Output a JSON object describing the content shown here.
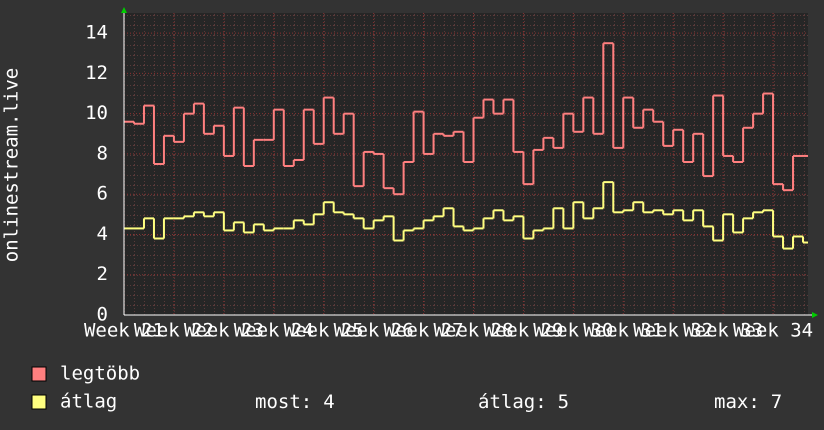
{
  "chart_data": {
    "type": "line",
    "y_label": "onlinestream.live",
    "x": [
      21.0,
      21.2,
      21.4,
      21.6,
      21.8,
      22.0,
      22.2,
      22.4,
      22.6,
      22.8,
      23.0,
      23.2,
      23.4,
      23.6,
      23.8,
      24.0,
      24.2,
      24.4,
      24.6,
      24.8,
      25.0,
      25.2,
      25.4,
      25.6,
      25.8,
      26.0,
      26.2,
      26.4,
      26.6,
      26.8,
      27.0,
      27.2,
      27.4,
      27.6,
      27.8,
      28.0,
      28.2,
      28.4,
      28.6,
      28.8,
      29.0,
      29.2,
      29.4,
      29.6,
      29.8,
      30.0,
      30.2,
      30.4,
      30.6,
      30.8,
      31.0,
      31.2,
      31.4,
      31.6,
      31.8,
      32.0,
      32.2,
      32.4,
      32.6,
      32.8,
      33.0,
      33.2,
      33.4,
      33.6,
      33.8,
      34.0,
      34.2,
      34.4,
      34.6
    ],
    "series": [
      {
        "name": "legtöbb",
        "color": "#ff7f7f",
        "values": [
          9.6,
          9.5,
          10.4,
          7.5,
          8.9,
          8.6,
          10.0,
          10.5,
          9.0,
          9.4,
          7.9,
          10.3,
          7.4,
          8.7,
          8.7,
          10.2,
          7.4,
          7.7,
          10.2,
          8.5,
          10.8,
          9.0,
          10.0,
          6.4,
          8.1,
          8.0,
          6.3,
          6.0,
          7.6,
          10.1,
          8.0,
          9.0,
          8.9,
          9.1,
          7.6,
          9.8,
          10.7,
          10.0,
          10.7,
          8.1,
          6.5,
          8.2,
          8.8,
          8.3,
          10.0,
          9.1,
          10.8,
          9.0,
          13.5,
          8.3,
          10.8,
          9.3,
          10.2,
          9.6,
          8.4,
          9.2,
          7.6,
          9.0,
          6.9,
          10.9,
          7.9,
          7.6,
          9.3,
          10.0,
          11.0,
          6.5,
          6.2,
          7.9,
          7.9
        ]
      },
      {
        "name": "átlag",
        "color": "#ffff80",
        "values": [
          4.3,
          4.3,
          4.8,
          3.8,
          4.8,
          4.8,
          4.9,
          5.1,
          4.9,
          5.1,
          4.2,
          4.6,
          4.1,
          4.5,
          4.2,
          4.3,
          4.3,
          4.7,
          4.5,
          5.0,
          5.6,
          5.1,
          5.0,
          4.8,
          4.3,
          4.7,
          4.9,
          3.7,
          4.2,
          4.3,
          4.7,
          4.9,
          5.3,
          4.4,
          4.2,
          4.3,
          4.8,
          5.2,
          4.7,
          4.9,
          3.8,
          4.2,
          4.3,
          5.3,
          4.3,
          5.6,
          4.8,
          5.3,
          6.6,
          5.1,
          5.2,
          5.6,
          5.1,
          5.2,
          5.0,
          5.2,
          4.7,
          5.2,
          4.4,
          3.7,
          5.0,
          4.1,
          4.8,
          5.1,
          5.2,
          3.9,
          3.3,
          3.9,
          3.6
        ]
      }
    ],
    "xlim": [
      21,
      34.7
    ],
    "xticks": [
      {
        "value": 21,
        "label": "Week 21"
      },
      {
        "value": 22,
        "label": "Week 22"
      },
      {
        "value": 23,
        "label": "Week 23"
      },
      {
        "value": 24,
        "label": "Week 24"
      },
      {
        "value": 25,
        "label": "Week 25"
      },
      {
        "value": 26,
        "label": "Week 26"
      },
      {
        "value": 27,
        "label": "Week 27"
      },
      {
        "value": 28,
        "label": "Week 28"
      },
      {
        "value": 29,
        "label": "Week 29"
      },
      {
        "value": 30,
        "label": "Week 30"
      },
      {
        "value": 31,
        "label": "Week 31"
      },
      {
        "value": 32,
        "label": "Week 32"
      },
      {
        "value": 33,
        "label": "Week 33"
      },
      {
        "value": 34,
        "label": "Week 34"
      }
    ],
    "ylim": [
      0,
      15
    ],
    "yticks": [
      0,
      2,
      4,
      6,
      8,
      10,
      12,
      14
    ],
    "grid": true,
    "stats": [
      {
        "label": "most:",
        "value": 4
      },
      {
        "label": "átlag:",
        "value": 5
      },
      {
        "label": "max:",
        "value": 7
      }
    ]
  }
}
